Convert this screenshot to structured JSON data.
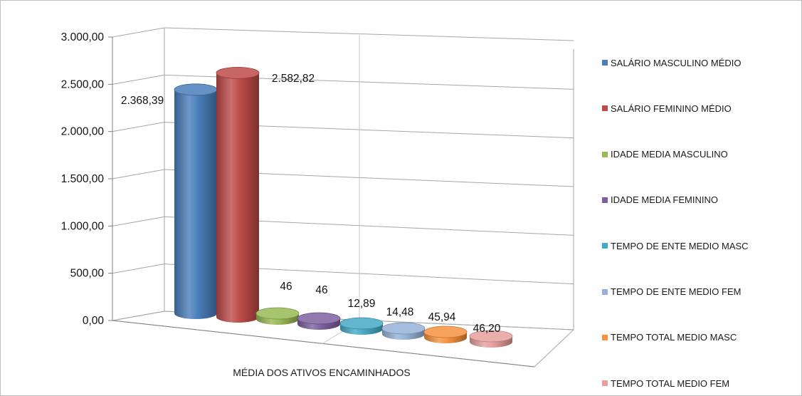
{
  "chart_data": {
    "type": "bar",
    "style": "3d-cylinder",
    "title": "",
    "xlabel": "MÉDIA DOS ATIVOS ENCAMINHADOS",
    "ylabel": "",
    "ylim": [
      0,
      3000
    ],
    "yticks": [
      "0,00",
      "500,00",
      "1.000,00",
      "1.500,00",
      "2.000,00",
      "2.500,00",
      "3.000,00"
    ],
    "grid": true,
    "legend_position": "right",
    "series": [
      {
        "name": "SALÁRIO MASCULINO MÉDIO",
        "value": 2368.39,
        "label": "2.368,39",
        "color": "#4a7ebb"
      },
      {
        "name": "SALÁRIO FEMININO MÉDIO",
        "value": 2582.82,
        "label": "2.582,82",
        "color": "#be4b48"
      },
      {
        "name": "IDADE MEDIA MASCULINO",
        "value": 46,
        "label": "46",
        "color": "#98b954"
      },
      {
        "name": "IDADE MEDIA FEMININO",
        "value": 46,
        "label": "46",
        "color": "#7d60a0"
      },
      {
        "name": "TEMPO DE ENTE MEDIO MASC",
        "value": 12.89,
        "label": "12,89",
        "color": "#46aac5"
      },
      {
        "name": "TEMPO DE ENTE MEDIO FEM",
        "value": 14.48,
        "label": "14,48",
        "color": "#95b3d7"
      },
      {
        "name": "TEMPO TOTAL MEDIO MASC",
        "value": 45.94,
        "label": "45,94",
        "color": "#f69240"
      },
      {
        "name": "TEMPO TOTAL MEDIO FEM",
        "value": 46.2,
        "label": "46,20",
        "color": "#e6a09e"
      }
    ]
  }
}
